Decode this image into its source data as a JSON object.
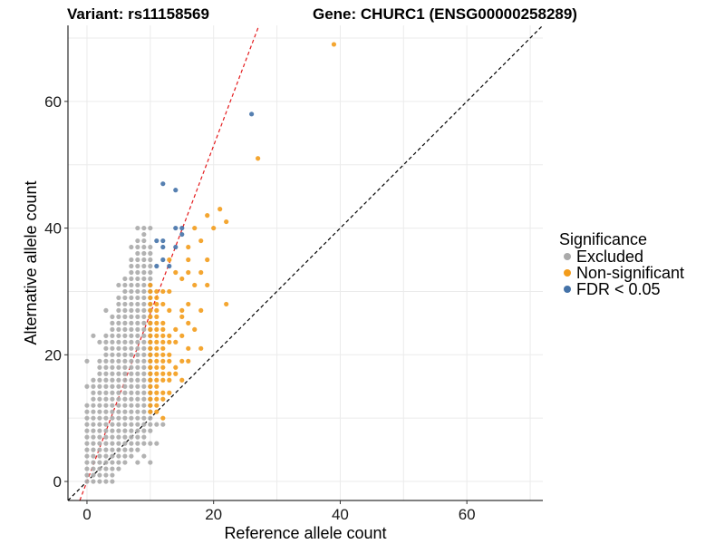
{
  "chart_data": {
    "type": "scatter",
    "title_left": "Variant: rs11158569",
    "title_right": "Gene: CHURC1 (ENSG00000258289)",
    "xlabel": "Reference allele count",
    "ylabel": "Alternative allele count",
    "xlim": [
      -3,
      72
    ],
    "ylim": [
      -3,
      72
    ],
    "x_ticks": [
      0,
      20,
      40,
      60
    ],
    "y_ticks": [
      0,
      20,
      40,
      60
    ],
    "reference_lines": [
      {
        "name": "identity",
        "slope": 1,
        "intercept": 0,
        "color": "#000000",
        "style": "dashed"
      },
      {
        "name": "fit",
        "slope": 2.65,
        "intercept": 0,
        "color": "#e41a1c",
        "style": "dashed"
      }
    ],
    "legend": {
      "title": "Significance",
      "entries": [
        {
          "label": "Excluded",
          "color": "#aaaaaa"
        },
        {
          "label": "Non-significant",
          "color": "#f39c1b"
        },
        {
          "label": "FDR < 0.05",
          "color": "#4472a8"
        }
      ]
    },
    "series": [
      {
        "name": "Excluded",
        "color": "#aaaaaa",
        "bands": [
          {
            "x": 0,
            "y_min": 0,
            "y_max": 12
          },
          {
            "x": 1,
            "y_min": 0,
            "y_max": 16
          },
          {
            "x": 2,
            "y_min": 0,
            "y_max": 19
          },
          {
            "x": 3,
            "y_min": 1,
            "y_max": 23
          },
          {
            "x": 4,
            "y_min": 1,
            "y_max": 26
          },
          {
            "x": 5,
            "y_min": 2,
            "y_max": 29
          },
          {
            "x": 6,
            "y_min": 3,
            "y_max": 32
          },
          {
            "x": 7,
            "y_min": 4,
            "y_max": 35
          },
          {
            "x": 8,
            "y_min": 5,
            "y_max": 38
          },
          {
            "x": 9,
            "y_min": 6,
            "y_max": 40
          },
          {
            "x": 10,
            "y_min": 8,
            "y_max": 36
          }
        ],
        "points": [
          {
            "x": 0,
            "y": 15
          },
          {
            "x": 0,
            "y": 19
          },
          {
            "x": 1,
            "y": 23
          },
          {
            "x": 2,
            "y": 22
          },
          {
            "x": 3,
            "y": 27
          },
          {
            "x": 5,
            "y": 31
          },
          {
            "x": 7,
            "y": 37
          },
          {
            "x": 8,
            "y": 40
          },
          {
            "x": 10,
            "y": 40
          },
          {
            "x": 10,
            "y": 37
          },
          {
            "x": 10,
            "y": 6
          },
          {
            "x": 9,
            "y": 4
          },
          {
            "x": 8,
            "y": 3
          },
          {
            "x": 10,
            "y": 3
          },
          {
            "x": 11,
            "y": 6
          },
          {
            "x": 11,
            "y": 9
          },
          {
            "x": 12,
            "y": 9
          },
          {
            "x": 3,
            "y": 0
          },
          {
            "x": 4,
            "y": 0
          }
        ]
      },
      {
        "name": "Non-significant",
        "color": "#f39c1b",
        "bands": [
          {
            "x": 10,
            "y_min": 11,
            "y_max": 31
          },
          {
            "x": 11,
            "y_min": 11,
            "y_max": 30
          },
          {
            "x": 12,
            "y_min": 16,
            "y_max": 25
          }
        ],
        "points": [
          {
            "x": 12,
            "y": 10
          },
          {
            "x": 12,
            "y": 13
          },
          {
            "x": 12,
            "y": 14
          },
          {
            "x": 12,
            "y": 28
          },
          {
            "x": 12,
            "y": 30
          },
          {
            "x": 13,
            "y": 14
          },
          {
            "x": 13,
            "y": 16
          },
          {
            "x": 13,
            "y": 17
          },
          {
            "x": 13,
            "y": 19
          },
          {
            "x": 13,
            "y": 20
          },
          {
            "x": 13,
            "y": 22
          },
          {
            "x": 13,
            "y": 23
          },
          {
            "x": 13,
            "y": 27
          },
          {
            "x": 13,
            "y": 30
          },
          {
            "x": 13,
            "y": 35
          },
          {
            "x": 14,
            "y": 17
          },
          {
            "x": 14,
            "y": 18
          },
          {
            "x": 14,
            "y": 22
          },
          {
            "x": 14,
            "y": 24
          },
          {
            "x": 14,
            "y": 33
          },
          {
            "x": 15,
            "y": 16
          },
          {
            "x": 15,
            "y": 19
          },
          {
            "x": 15,
            "y": 23
          },
          {
            "x": 15,
            "y": 26
          },
          {
            "x": 15,
            "y": 27
          },
          {
            "x": 15,
            "y": 32
          },
          {
            "x": 16,
            "y": 19
          },
          {
            "x": 16,
            "y": 21
          },
          {
            "x": 16,
            "y": 25
          },
          {
            "x": 16,
            "y": 28
          },
          {
            "x": 16,
            "y": 33
          },
          {
            "x": 16,
            "y": 35
          },
          {
            "x": 16,
            "y": 37
          },
          {
            "x": 17,
            "y": 24
          },
          {
            "x": 17,
            "y": 31
          },
          {
            "x": 17,
            "y": 40
          },
          {
            "x": 18,
            "y": 21
          },
          {
            "x": 18,
            "y": 27
          },
          {
            "x": 18,
            "y": 33
          },
          {
            "x": 18,
            "y": 38
          },
          {
            "x": 19,
            "y": 42
          },
          {
            "x": 19,
            "y": 35
          },
          {
            "x": 19,
            "y": 31
          },
          {
            "x": 20,
            "y": 40
          },
          {
            "x": 21,
            "y": 43
          },
          {
            "x": 22,
            "y": 41
          },
          {
            "x": 22,
            "y": 28
          },
          {
            "x": 27,
            "y": 51
          },
          {
            "x": 39,
            "y": 69
          }
        ]
      },
      {
        "name": "FDR < 0.05",
        "color": "#4472a8",
        "points": [
          {
            "x": 11,
            "y": 34
          },
          {
            "x": 11,
            "y": 38
          },
          {
            "x": 12,
            "y": 35
          },
          {
            "x": 12,
            "y": 37
          },
          {
            "x": 12,
            "y": 38
          },
          {
            "x": 12,
            "y": 47
          },
          {
            "x": 13,
            "y": 34
          },
          {
            "x": 14,
            "y": 37
          },
          {
            "x": 14,
            "y": 40
          },
          {
            "x": 14,
            "y": 46
          },
          {
            "x": 15,
            "y": 39
          },
          {
            "x": 15,
            "y": 40
          },
          {
            "x": 26,
            "y": 58
          }
        ]
      }
    ]
  }
}
